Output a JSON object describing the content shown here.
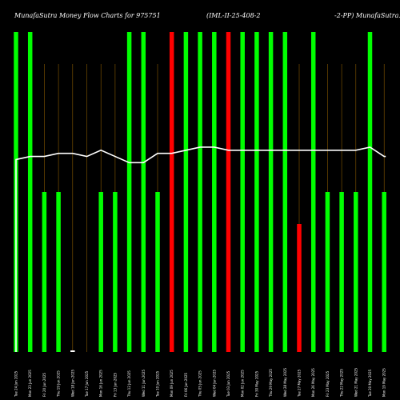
{
  "chart_data": {
    "type": "bar",
    "title_left": "MunafaSutra  Money Flow  Charts for 975751",
    "title_mid": "(IML-II-25-408-2",
    "title_right": "-2-PP)  MunafaSutra.com",
    "categories": [
      "Tue 24 Jun",
      "Mon 23 Jun",
      "Fri 20 Jun",
      "Thu 19 Jun",
      "Wed 18 Jun",
      "Tue 17 Jun",
      "Mon 16 Jun",
      "Fri 13 Jun",
      "Thu 12 Jun",
      "Wed 11 Jun",
      "Tue 10 Jun",
      "Mon 09 Jun",
      "Fri 06 Jun",
      "Thu 05 Jun",
      "Wed 04 Jun",
      "Tue 03 Jun",
      "Mon 02 Jun",
      "Fri 30 May",
      "Thu 29 May",
      "Wed 28 May",
      "Tue 27 May",
      "Mon 26 May",
      "Fri 23 May",
      "Thu 22 May",
      "Wed 21 May",
      "Tue 20 May",
      "Mon 19 May"
    ],
    "tick_labels": [
      "Tue 24 Jun 2025",
      "Mon 23 Jun 2025",
      "Fri 20 Jun 2025",
      "Thu 19 Jun 2025",
      "Wed 18 Jun 2025",
      "Tue 17 Jun 2025",
      "Mon 16 Jun 2025",
      "Fri 13 Jun 2025",
      "Thu 12 Jun 2025",
      "Wed 11 Jun 2025",
      "Tue 10 Jun 2025",
      "Mon 09 Jun 2025",
      "Fri 06 Jun 2025",
      "Thu 05 Jun 2025",
      "Wed 04 Jun 2025",
      "Tue 03 Jun 2025",
      "Mon 02 Jun 2025",
      "Fri 30 May 2025",
      "Thu 29 May 2025",
      "Wed 28 May 2025",
      "Tue 27 May 2025",
      "Mon 26 May 2025",
      "Fri 23 May 2025",
      "Thu 22 May 2025",
      "Wed 21 May 2025",
      "Tue 20 May 2025",
      "Mon 19 May 2025"
    ],
    "values": [
      100,
      100,
      50,
      50,
      0.5,
      0,
      50,
      50,
      100,
      100,
      50,
      100,
      100,
      100,
      100,
      100,
      100,
      100,
      100,
      100,
      40,
      100,
      50,
      50,
      50,
      100,
      50
    ],
    "direction": [
      "up",
      "up",
      "up",
      "up",
      "up",
      "down",
      "up",
      "up",
      "up",
      "up",
      "up",
      "down",
      "up",
      "up",
      "up",
      "down",
      "up",
      "up",
      "up",
      "up",
      "down",
      "up",
      "up",
      "up",
      "up",
      "up",
      "up"
    ],
    "line": [
      62,
      63,
      63,
      64,
      64,
      63,
      65,
      63,
      61,
      61,
      64,
      64,
      65,
      66,
      66,
      65,
      65,
      65,
      65,
      65,
      65,
      65,
      65,
      65,
      65,
      66,
      63
    ],
    "ylim": [
      0,
      110
    ],
    "colors": {
      "up": "#00ff00",
      "down": "#ff0000",
      "line": "#ffffff",
      "gridline": "#8a5a00",
      "background": "#000000"
    }
  }
}
